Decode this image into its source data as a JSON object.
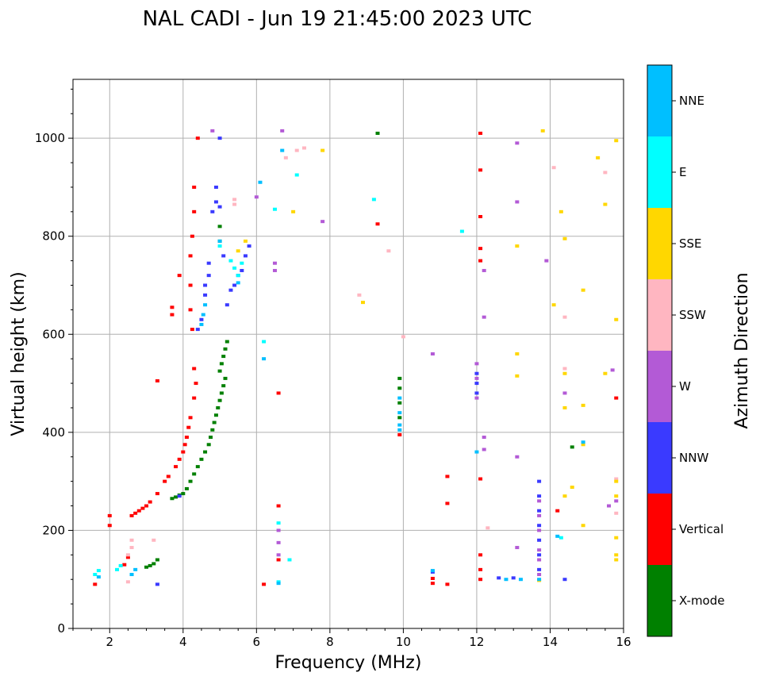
{
  "chart_data": {
    "type": "scatter",
    "title": "NAL CADI - Jun 19 21:45:00 2023 UTC",
    "xlabel": "Frequency (MHz)",
    "ylabel": "Virtual height (km)",
    "xlim": [
      1,
      16
    ],
    "ylim": [
      0,
      1120
    ],
    "xticks": [
      2,
      4,
      6,
      8,
      10,
      12,
      14,
      16
    ],
    "yticks": [
      0,
      200,
      400,
      600,
      800,
      1000
    ],
    "grid": true,
    "colorbar": {
      "label": "Azimuth Direction",
      "categories": [
        {
          "name": "X-mode",
          "color": "#008000"
        },
        {
          "name": "Vertical",
          "color": "#ff0000"
        },
        {
          "name": "NNW",
          "color": "#3a3aff"
        },
        {
          "name": "W",
          "color": "#b35ad6"
        },
        {
          "name": "SSW",
          "color": "#ffb6c1"
        },
        {
          "name": "SSE",
          "color": "#ffd700"
        },
        {
          "name": "E",
          "color": "#00ffff"
        },
        {
          "name": "NNE",
          "color": "#00bfff"
        }
      ]
    },
    "series": [
      {
        "name": "X-mode",
        "points": [
          [
            3.0,
            125
          ],
          [
            3.1,
            128
          ],
          [
            3.2,
            132
          ],
          [
            3.3,
            140
          ],
          [
            3.7,
            265
          ],
          [
            3.8,
            268
          ],
          [
            3.9,
            272
          ],
          [
            4.0,
            275
          ],
          [
            4.1,
            285
          ],
          [
            4.2,
            300
          ],
          [
            4.3,
            315
          ],
          [
            4.4,
            330
          ],
          [
            4.5,
            345
          ],
          [
            4.6,
            360
          ],
          [
            4.7,
            375
          ],
          [
            4.75,
            390
          ],
          [
            4.8,
            405
          ],
          [
            4.85,
            420
          ],
          [
            4.9,
            435
          ],
          [
            4.95,
            450
          ],
          [
            5.0,
            465
          ],
          [
            5.05,
            480
          ],
          [
            5.1,
            495
          ],
          [
            5.15,
            510
          ],
          [
            5.0,
            525
          ],
          [
            5.05,
            540
          ],
          [
            5.1,
            555
          ],
          [
            5.15,
            570
          ],
          [
            5.2,
            585
          ],
          [
            5.0,
            790
          ],
          [
            5.0,
            820
          ],
          [
            9.9,
            430
          ],
          [
            9.9,
            460
          ],
          [
            9.9,
            490
          ],
          [
            9.9,
            510
          ],
          [
            9.3,
            1010
          ],
          [
            14.6,
            370
          ]
        ]
      },
      {
        "name": "Vertical",
        "points": [
          [
            1.6,
            90
          ],
          [
            2.0,
            210
          ],
          [
            2.0,
            230
          ],
          [
            2.4,
            130
          ],
          [
            2.5,
            145
          ],
          [
            2.6,
            230
          ],
          [
            2.7,
            235
          ],
          [
            2.8,
            240
          ],
          [
            2.9,
            245
          ],
          [
            3.0,
            250
          ],
          [
            3.1,
            258
          ],
          [
            3.3,
            275
          ],
          [
            3.5,
            300
          ],
          [
            3.6,
            310
          ],
          [
            3.8,
            330
          ],
          [
            3.9,
            345
          ],
          [
            4.0,
            360
          ],
          [
            4.05,
            375
          ],
          [
            4.1,
            390
          ],
          [
            4.15,
            410
          ],
          [
            4.2,
            430
          ],
          [
            4.3,
            470
          ],
          [
            4.35,
            500
          ],
          [
            4.3,
            530
          ],
          [
            4.25,
            610
          ],
          [
            4.2,
            650
          ],
          [
            4.2,
            700
          ],
          [
            4.2,
            760
          ],
          [
            4.25,
            800
          ],
          [
            4.3,
            850
          ],
          [
            4.3,
            900
          ],
          [
            4.4,
            1000
          ],
          [
            3.9,
            720
          ],
          [
            3.7,
            640
          ],
          [
            3.7,
            655
          ],
          [
            3.3,
            505
          ],
          [
            6.6,
            140
          ],
          [
            6.6,
            250
          ],
          [
            6.6,
            480
          ],
          [
            6.2,
            90
          ],
          [
            9.9,
            395
          ],
          [
            10.8,
            92
          ],
          [
            10.8,
            102
          ],
          [
            11.2,
            90
          ],
          [
            11.2,
            255
          ],
          [
            11.2,
            310
          ],
          [
            12.1,
            100
          ],
          [
            12.1,
            120
          ],
          [
            12.1,
            150
          ],
          [
            12.1,
            305
          ],
          [
            12.1,
            750
          ],
          [
            12.1,
            775
          ],
          [
            12.1,
            840
          ],
          [
            12.1,
            935
          ],
          [
            12.1,
            1010
          ],
          [
            9.3,
            825
          ],
          [
            14.2,
            240
          ],
          [
            15.8,
            470
          ]
        ]
      },
      {
        "name": "NNW",
        "points": [
          [
            3.3,
            90
          ],
          [
            3.9,
            270
          ],
          [
            4.4,
            610
          ],
          [
            4.5,
            630
          ],
          [
            4.6,
            680
          ],
          [
            4.6,
            700
          ],
          [
            4.7,
            720
          ],
          [
            4.7,
            745
          ],
          [
            4.8,
            850
          ],
          [
            4.9,
            870
          ],
          [
            4.9,
            900
          ],
          [
            5.0,
            860
          ],
          [
            5.2,
            660
          ],
          [
            5.3,
            690
          ],
          [
            5.4,
            700
          ],
          [
            5.5,
            720
          ],
          [
            5.6,
            730
          ],
          [
            5.7,
            760
          ],
          [
            5.8,
            780
          ],
          [
            5.0,
            1000
          ],
          [
            5.1,
            760
          ],
          [
            10.8,
            115
          ],
          [
            12.0,
            500
          ],
          [
            12.0,
            520
          ],
          [
            12.0,
            480
          ],
          [
            12.6,
            103
          ],
          [
            13.0,
            103
          ],
          [
            13.7,
            120
          ],
          [
            13.7,
            150
          ],
          [
            13.7,
            180
          ],
          [
            13.7,
            210
          ],
          [
            13.7,
            240
          ],
          [
            13.7,
            270
          ],
          [
            13.7,
            300
          ],
          [
            14.4,
            100
          ]
        ]
      },
      {
        "name": "W",
        "points": [
          [
            6.6,
            150
          ],
          [
            6.6,
            175
          ],
          [
            6.6,
            200
          ],
          [
            6.5,
            730
          ],
          [
            6.5,
            745
          ],
          [
            6.0,
            880
          ],
          [
            6.7,
            1015
          ],
          [
            4.8,
            1015
          ],
          [
            12.0,
            470
          ],
          [
            12.0,
            510
          ],
          [
            12.0,
            540
          ],
          [
            12.2,
            365
          ],
          [
            12.2,
            390
          ],
          [
            12.2,
            635
          ],
          [
            12.2,
            730
          ],
          [
            13.1,
            165
          ],
          [
            13.1,
            350
          ],
          [
            13.1,
            870
          ],
          [
            13.1,
            990
          ],
          [
            13.7,
            110
          ],
          [
            13.7,
            140
          ],
          [
            13.7,
            160
          ],
          [
            13.7,
            200
          ],
          [
            13.7,
            230
          ],
          [
            13.7,
            260
          ],
          [
            13.9,
            750
          ],
          [
            14.4,
            480
          ],
          [
            15.6,
            250
          ],
          [
            15.7,
            527
          ],
          [
            15.8,
            260
          ],
          [
            7.8,
            830
          ],
          [
            10.8,
            560
          ]
        ]
      },
      {
        "name": "SSW",
        "points": [
          [
            2.5,
            95
          ],
          [
            2.5,
            150
          ],
          [
            2.6,
            165
          ],
          [
            2.6,
            180
          ],
          [
            3.2,
            180
          ],
          [
            5.4,
            875
          ],
          [
            5.4,
            865
          ],
          [
            6.8,
            960
          ],
          [
            7.1,
            975
          ],
          [
            7.3,
            980
          ],
          [
            8.8,
            680
          ],
          [
            9.6,
            770
          ],
          [
            10.0,
            595
          ],
          [
            12.3,
            205
          ],
          [
            14.1,
            940
          ],
          [
            14.4,
            635
          ],
          [
            14.4,
            530
          ],
          [
            15.5,
            930
          ],
          [
            15.8,
            235
          ],
          [
            15.8,
            305
          ]
        ]
      },
      {
        "name": "SSE",
        "points": [
          [
            5.5,
            770
          ],
          [
            5.7,
            790
          ],
          [
            7.0,
            850
          ],
          [
            7.8,
            975
          ],
          [
            8.9,
            665
          ],
          [
            13.1,
            515
          ],
          [
            13.1,
            560
          ],
          [
            13.1,
            780
          ],
          [
            13.7,
            98
          ],
          [
            13.8,
            1015
          ],
          [
            14.1,
            660
          ],
          [
            14.3,
            850
          ],
          [
            14.4,
            270
          ],
          [
            14.4,
            450
          ],
          [
            14.4,
            795
          ],
          [
            14.4,
            520
          ],
          [
            14.6,
            288
          ],
          [
            14.9,
            210
          ],
          [
            14.9,
            455
          ],
          [
            14.9,
            375
          ],
          [
            14.9,
            690
          ],
          [
            15.3,
            960
          ],
          [
            15.5,
            865
          ],
          [
            15.5,
            520
          ],
          [
            15.8,
            185
          ],
          [
            15.8,
            150
          ],
          [
            15.8,
            140
          ],
          [
            15.8,
            270
          ],
          [
            15.8,
            300
          ],
          [
            15.8,
            630
          ],
          [
            15.8,
            995
          ]
        ]
      },
      {
        "name": "E",
        "points": [
          [
            1.6,
            110
          ],
          [
            1.7,
            118
          ],
          [
            2.2,
            120
          ],
          [
            2.3,
            128
          ],
          [
            5.3,
            750
          ],
          [
            5.4,
            735
          ],
          [
            5.5,
            720
          ],
          [
            5.6,
            745
          ],
          [
            5.0,
            780
          ],
          [
            6.6,
            95
          ],
          [
            6.6,
            215
          ],
          [
            6.2,
            585
          ],
          [
            6.9,
            140
          ],
          [
            7.1,
            925
          ],
          [
            6.5,
            855
          ],
          [
            9.2,
            875
          ],
          [
            11.6,
            810
          ],
          [
            14.3,
            185
          ]
        ]
      },
      {
        "name": "NNE",
        "points": [
          [
            1.7,
            105
          ],
          [
            2.6,
            110
          ],
          [
            2.7,
            120
          ],
          [
            4.5,
            620
          ],
          [
            4.55,
            640
          ],
          [
            4.6,
            660
          ],
          [
            5.0,
            790
          ],
          [
            6.6,
            92
          ],
          [
            9.9,
            405
          ],
          [
            9.9,
            415
          ],
          [
            9.9,
            440
          ],
          [
            9.9,
            470
          ],
          [
            10.8,
            118
          ],
          [
            12.0,
            360
          ],
          [
            12.8,
            100
          ],
          [
            13.2,
            100
          ],
          [
            13.7,
            100
          ],
          [
            14.2,
            188
          ],
          [
            14.9,
            380
          ],
          [
            6.2,
            550
          ],
          [
            6.1,
            910
          ],
          [
            6.7,
            975
          ],
          [
            5.5,
            705
          ]
        ]
      }
    ]
  }
}
